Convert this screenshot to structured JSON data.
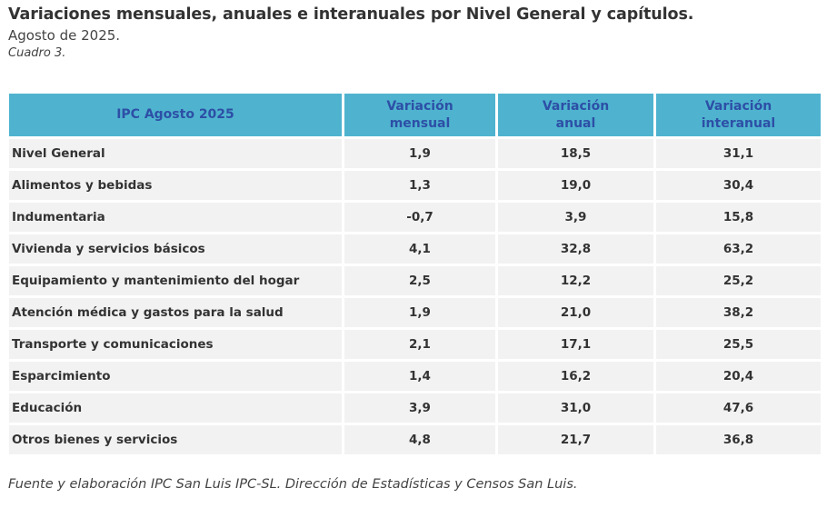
{
  "header": {
    "title": "Variaciones mensuales, anuales e interanuales por Nivel General y capítulos.",
    "subtitle": "Agosto de 2025.",
    "table_caption": "Cuadro 3."
  },
  "table": {
    "columns": [
      {
        "lines": [
          "IPC Agosto 2025"
        ]
      },
      {
        "lines": [
          "Variación",
          "mensual"
        ]
      },
      {
        "lines": [
          "Variación",
          "anual"
        ]
      },
      {
        "lines": [
          "Variación",
          "interanual"
        ]
      }
    ],
    "rows": [
      {
        "label": "Nivel General",
        "mensual": "1,9",
        "anual": "18,5",
        "interanual": "31,1"
      },
      {
        "label": "Alimentos y bebidas",
        "mensual": "1,3",
        "anual": "19,0",
        "interanual": "30,4"
      },
      {
        "label": "Indumentaria",
        "mensual": "-0,7",
        "anual": "3,9",
        "interanual": "15,8"
      },
      {
        "label": "Vivienda y servicios básicos",
        "mensual": "4,1",
        "anual": "32,8",
        "interanual": "63,2"
      },
      {
        "label": "Equipamiento y mantenimiento del hogar",
        "mensual": "2,5",
        "anual": "12,2",
        "interanual": "25,2"
      },
      {
        "label": "Atención médica y gastos para la salud",
        "mensual": "1,9",
        "anual": "21,0",
        "interanual": "38,2"
      },
      {
        "label": "Transporte y comunicaciones",
        "mensual": "2,1",
        "anual": "17,1",
        "interanual": "25,5"
      },
      {
        "label": "Esparcimiento",
        "mensual": "1,4",
        "anual": "16,2",
        "interanual": "20,4"
      },
      {
        "label": "Educación",
        "mensual": "3,9",
        "anual": "31,0",
        "interanual": "47,6"
      },
      {
        "label": "Otros bienes y servicios",
        "mensual": "4,8",
        "anual": "21,7",
        "interanual": "36,8"
      }
    ]
  },
  "footer": {
    "source": "Fuente y elaboración IPC San Luis IPC-SL. Dirección de Estadísticas y Censos San Luis."
  },
  "colors": {
    "header_bg": "#4fb3cf",
    "header_text": "#2d4fa6",
    "row_bg": "#f2f2f2"
  }
}
